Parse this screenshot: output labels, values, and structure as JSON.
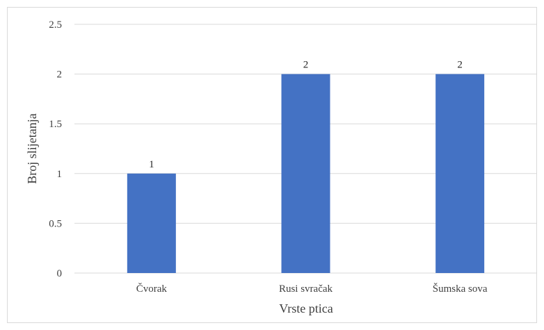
{
  "chart_data": {
    "type": "bar",
    "title": "",
    "xlabel": "Vrste ptica",
    "ylabel": "Broj slijetanja",
    "categories": [
      "Čvorak",
      "Rusi svračak",
      "Šumska sova"
    ],
    "values": [
      1,
      2,
      2
    ],
    "data_labels": [
      "1",
      "2",
      "2"
    ],
    "y_ticks": [
      "0",
      "0.5",
      "1",
      "1.5",
      "2",
      "2.5"
    ],
    "ylim": [
      0,
      2.5
    ],
    "grid": true,
    "legend": "none",
    "bar_color": "#4472c4",
    "grid_color": "#d9d9d9"
  }
}
